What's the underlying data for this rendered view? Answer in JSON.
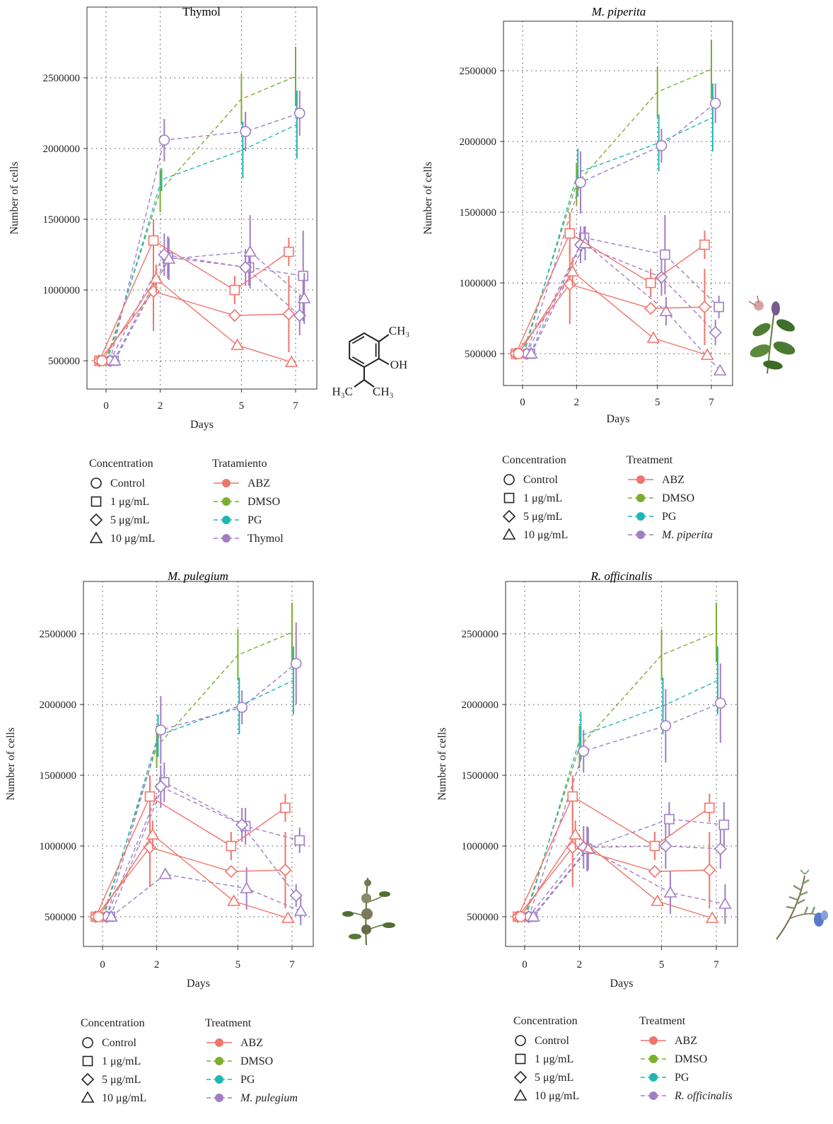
{
  "colors": {
    "ABZ": "#F0756B",
    "DMSO": "#7AAE2E",
    "PG": "#1FB7B5",
    "EO": "#A07EC4"
  },
  "icons": {
    "panel_1": "thymol-structure",
    "panel_2": "mentha-piperita-plant",
    "panel_3": "mentha-pulegium-plant",
    "panel_4": "rosmarinus-officinalis-plant"
  },
  "chem": {
    "ch3_top": "CH₃",
    "oh": "OH",
    "h3c": "H₃C",
    "ch3_bottom": "CH₃"
  },
  "chart_data": [
    {
      "type": "line",
      "title": "Thymol",
      "title_italic": false,
      "xlabel": "Days",
      "ylabel": "Number of cells",
      "x_ticks": [
        0,
        2,
        5,
        7
      ],
      "y_ticks": [
        500000,
        1000000,
        1500000,
        2000000,
        2500000
      ],
      "ylim": [
        300000,
        2750000
      ],
      "grid": true,
      "legend": {
        "conc_title": "Concentration",
        "conc": [
          "Control",
          "1 μg/mL",
          "5 μg/mL",
          "10 μg/mL"
        ],
        "treat_title": "Tratamiento",
        "treat": [
          "ABZ",
          "DMSO",
          "PG",
          "Thymol"
        ]
      },
      "series": [
        {
          "treatment": "DMSO",
          "marker": "none",
          "x": [
            0,
            2,
            5,
            7
          ],
          "y": [
            500000,
            1700000,
            2350000,
            2510000
          ],
          "err": [
            0,
            150000,
            180000,
            210000
          ]
        },
        {
          "treatment": "PG",
          "marker": "none",
          "x": [
            0,
            2,
            5,
            7
          ],
          "y": [
            500000,
            1780000,
            1990000,
            2170000
          ],
          "err": [
            0,
            80000,
            200000,
            240000
          ]
        },
        {
          "treatment": "EO",
          "marker": "circle",
          "x": [
            0,
            2,
            5,
            7
          ],
          "y": [
            500000,
            2060000,
            2120000,
            2250000
          ],
          "err": [
            0,
            150000,
            140000,
            160000
          ]
        },
        {
          "treatment": "EO",
          "marker": "square",
          "x": [
            0,
            2,
            5,
            7
          ],
          "y": [
            500000,
            1230000,
            1160000,
            1100000
          ],
          "err": [
            0,
            150000,
            130000,
            320000
          ]
        },
        {
          "treatment": "EO",
          "marker": "diamond",
          "x": [
            0,
            2,
            5,
            7
          ],
          "y": [
            500000,
            1250000,
            1160000,
            820000
          ],
          "err": [
            0,
            150000,
            130000,
            140000
          ]
        },
        {
          "treatment": "EO",
          "marker": "triangle",
          "x": [
            0,
            2,
            5,
            7
          ],
          "y": [
            500000,
            1220000,
            1270000,
            940000
          ],
          "err": [
            0,
            150000,
            260000,
            180000
          ]
        },
        {
          "treatment": "ABZ",
          "marker": "square",
          "x": [
            0,
            2,
            5,
            7
          ],
          "y": [
            500000,
            1350000,
            1000000,
            1270000
          ],
          "err": [
            0,
            150000,
            100000,
            100000
          ]
        },
        {
          "treatment": "ABZ",
          "marker": "diamond",
          "x": [
            0,
            2,
            5,
            7
          ],
          "y": [
            500000,
            990000,
            820000,
            830000
          ],
          "err": [
            0,
            280000,
            0,
            270000
          ]
        },
        {
          "treatment": "ABZ",
          "marker": "triangle",
          "x": [
            0,
            2,
            5,
            7
          ],
          "y": [
            500000,
            1080000,
            610000,
            490000
          ],
          "err": [
            0,
            100000,
            0,
            0
          ]
        },
        {
          "treatment": "ABZ",
          "marker": "circle",
          "x": [
            0
          ],
          "y": [
            500000
          ],
          "err": [
            0
          ]
        }
      ]
    },
    {
      "type": "line",
      "title": "M. piperita",
      "title_italic": true,
      "xlabel": "Days",
      "ylabel": "Number of cells",
      "x_ticks": [
        0,
        2,
        5,
        7
      ],
      "y_ticks": [
        500000,
        1000000,
        1500000,
        2000000,
        2500000
      ],
      "ylim": [
        300000,
        2750000
      ],
      "grid": true,
      "legend": {
        "conc_title": "Concentration",
        "conc": [
          "Control",
          "1 μg/mL",
          "5 μg/mL",
          "10 μg/mL"
        ],
        "treat_title": "Treatment",
        "treat": [
          "ABZ",
          "DMSO",
          "PG",
          "M. piperita"
        ]
      },
      "series": [
        {
          "treatment": "DMSO",
          "marker": "none",
          "x": [
            0,
            2,
            5,
            7
          ],
          "y": [
            500000,
            1700000,
            2350000,
            2510000
          ],
          "err": [
            0,
            150000,
            180000,
            210000
          ]
        },
        {
          "treatment": "PG",
          "marker": "none",
          "x": [
            0,
            2,
            5,
            7
          ],
          "y": [
            500000,
            1780000,
            1990000,
            2170000
          ],
          "err": [
            0,
            170000,
            200000,
            240000
          ]
        },
        {
          "treatment": "EO",
          "marker": "circle",
          "x": [
            0,
            2,
            5,
            7
          ],
          "y": [
            500000,
            1710000,
            1970000,
            2270000
          ],
          "err": [
            0,
            220000,
            120000,
            140000
          ]
        },
        {
          "treatment": "EO",
          "marker": "square",
          "x": [
            0,
            2,
            5,
            7
          ],
          "y": [
            500000,
            1320000,
            1200000,
            830000
          ],
          "err": [
            0,
            80000,
            280000,
            80000
          ]
        },
        {
          "treatment": "EO",
          "marker": "diamond",
          "x": [
            0,
            2,
            5,
            7
          ],
          "y": [
            500000,
            1270000,
            1040000,
            650000
          ],
          "err": [
            0,
            130000,
            130000,
            90000
          ]
        },
        {
          "treatment": "EO",
          "marker": "triangle",
          "x": [
            0,
            2,
            5,
            7
          ],
          "y": [
            500000,
            1280000,
            800000,
            380000
          ],
          "err": [
            0,
            120000,
            100000,
            0
          ]
        },
        {
          "treatment": "ABZ",
          "marker": "square",
          "x": [
            0,
            2,
            5,
            7
          ],
          "y": [
            500000,
            1350000,
            1000000,
            1270000
          ],
          "err": [
            0,
            150000,
            100000,
            100000
          ]
        },
        {
          "treatment": "ABZ",
          "marker": "diamond",
          "x": [
            0,
            2,
            5,
            7
          ],
          "y": [
            500000,
            990000,
            820000,
            830000
          ],
          "err": [
            0,
            280000,
            0,
            270000
          ]
        },
        {
          "treatment": "ABZ",
          "marker": "triangle",
          "x": [
            0,
            2,
            5,
            7
          ],
          "y": [
            500000,
            1080000,
            610000,
            490000
          ],
          "err": [
            0,
            100000,
            0,
            0
          ]
        },
        {
          "treatment": "ABZ",
          "marker": "circle",
          "x": [
            0
          ],
          "y": [
            500000
          ],
          "err": [
            0
          ]
        }
      ]
    },
    {
      "type": "line",
      "title": "M. pulegium",
      "title_italic": true,
      "xlabel": "Days",
      "ylabel": "Number of cells",
      "x_ticks": [
        0,
        2,
        5,
        7
      ],
      "y_ticks": [
        500000,
        1000000,
        1500000,
        2000000,
        2500000
      ],
      "ylim": [
        300000,
        2750000
      ],
      "grid": true,
      "legend": {
        "conc_title": "Concentration",
        "conc": [
          "Control",
          "1 μg/mL",
          "5 μg/mL",
          "10 μg/mL"
        ],
        "treat_title": "Treatment",
        "treat": [
          "ABZ",
          "DMSO",
          "PG",
          "M. pulegium"
        ]
      },
      "series": [
        {
          "treatment": "DMSO",
          "marker": "none",
          "x": [
            0,
            2,
            5,
            7
          ],
          "y": [
            500000,
            1700000,
            2350000,
            2510000
          ],
          "err": [
            0,
            150000,
            180000,
            210000
          ]
        },
        {
          "treatment": "PG",
          "marker": "none",
          "x": [
            0,
            2,
            5,
            7
          ],
          "y": [
            500000,
            1780000,
            1990000,
            2170000
          ],
          "err": [
            0,
            150000,
            200000,
            240000
          ]
        },
        {
          "treatment": "EO",
          "marker": "circle",
          "x": [
            0,
            2,
            5,
            7
          ],
          "y": [
            500000,
            1820000,
            1980000,
            2290000
          ],
          "err": [
            0,
            240000,
            120000,
            290000
          ]
        },
        {
          "treatment": "EO",
          "marker": "square",
          "x": [
            0,
            2,
            5,
            7
          ],
          "y": [
            500000,
            1450000,
            1140000,
            1040000
          ],
          "err": [
            0,
            140000,
            130000,
            90000
          ]
        },
        {
          "treatment": "EO",
          "marker": "diamond",
          "x": [
            0,
            2,
            5,
            7
          ],
          "y": [
            500000,
            1420000,
            1150000,
            650000
          ],
          "err": [
            0,
            150000,
            120000,
            80000
          ]
        },
        {
          "treatment": "EO",
          "marker": "triangle",
          "x": [
            0,
            2,
            5,
            7
          ],
          "y": [
            500000,
            800000,
            700000,
            540000
          ],
          "err": [
            0,
            0,
            150000,
            100000
          ]
        },
        {
          "treatment": "ABZ",
          "marker": "square",
          "x": [
            0,
            2,
            5,
            7
          ],
          "y": [
            500000,
            1350000,
            1000000,
            1270000
          ],
          "err": [
            0,
            150000,
            100000,
            100000
          ]
        },
        {
          "treatment": "ABZ",
          "marker": "diamond",
          "x": [
            0,
            2,
            5,
            7
          ],
          "y": [
            500000,
            990000,
            820000,
            830000
          ],
          "err": [
            0,
            280000,
            0,
            270000
          ]
        },
        {
          "treatment": "ABZ",
          "marker": "triangle",
          "x": [
            0,
            2,
            5,
            7
          ],
          "y": [
            500000,
            1080000,
            610000,
            490000
          ],
          "err": [
            0,
            100000,
            0,
            0
          ]
        },
        {
          "treatment": "ABZ",
          "marker": "circle",
          "x": [
            0
          ],
          "y": [
            500000
          ],
          "err": [
            0
          ]
        }
      ]
    },
    {
      "type": "line",
      "title": "R. officinalis",
      "title_italic": true,
      "xlabel": "Days",
      "ylabel": "Number of cells",
      "x_ticks": [
        0,
        2,
        5,
        7
      ],
      "y_ticks": [
        500000,
        1000000,
        1500000,
        2000000,
        2500000
      ],
      "ylim": [
        300000,
        2750000
      ],
      "grid": true,
      "legend": {
        "conc_title": "Concentration",
        "conc": [
          "Control",
          "1 μg/mL",
          "5 μg/mL",
          "10 μg/mL"
        ],
        "treat_title": "Treatment",
        "treat": [
          "ABZ",
          "DMSO",
          "PG",
          "R. officinalis"
        ]
      },
      "series": [
        {
          "treatment": "DMSO",
          "marker": "none",
          "x": [
            0,
            2,
            5,
            7
          ],
          "y": [
            500000,
            1700000,
            2350000,
            2510000
          ],
          "err": [
            0,
            150000,
            180000,
            210000
          ]
        },
        {
          "treatment": "PG",
          "marker": "none",
          "x": [
            0,
            2,
            5,
            7
          ],
          "y": [
            500000,
            1780000,
            1990000,
            2170000
          ],
          "err": [
            0,
            170000,
            200000,
            240000
          ]
        },
        {
          "treatment": "EO",
          "marker": "circle",
          "x": [
            0,
            2,
            5,
            7
          ],
          "y": [
            500000,
            1670000,
            1850000,
            2010000
          ],
          "err": [
            0,
            150000,
            260000,
            280000
          ]
        },
        {
          "treatment": "EO",
          "marker": "square",
          "x": [
            0,
            2,
            5,
            7
          ],
          "y": [
            500000,
            980000,
            1190000,
            1150000
          ],
          "err": [
            0,
            160000,
            120000,
            160000
          ]
        },
        {
          "treatment": "EO",
          "marker": "diamond",
          "x": [
            0,
            2,
            5,
            7
          ],
          "y": [
            500000,
            990000,
            1000000,
            980000
          ],
          "err": [
            0,
            150000,
            160000,
            140000
          ]
        },
        {
          "treatment": "EO",
          "marker": "triangle",
          "x": [
            0,
            2,
            5,
            7
          ],
          "y": [
            500000,
            980000,
            670000,
            590000
          ],
          "err": [
            0,
            150000,
            150000,
            140000
          ]
        },
        {
          "treatment": "ABZ",
          "marker": "square",
          "x": [
            0,
            2,
            5,
            7
          ],
          "y": [
            500000,
            1350000,
            1000000,
            1270000
          ],
          "err": [
            0,
            150000,
            100000,
            100000
          ]
        },
        {
          "treatment": "ABZ",
          "marker": "diamond",
          "x": [
            0,
            2,
            5,
            7
          ],
          "y": [
            500000,
            990000,
            820000,
            830000
          ],
          "err": [
            0,
            280000,
            0,
            270000
          ]
        },
        {
          "treatment": "ABZ",
          "marker": "triangle",
          "x": [
            0,
            2,
            5,
            7
          ],
          "y": [
            500000,
            1080000,
            610000,
            490000
          ],
          "err": [
            0,
            100000,
            0,
            0
          ]
        },
        {
          "treatment": "ABZ",
          "marker": "circle",
          "x": [
            0
          ],
          "y": [
            500000
          ],
          "err": [
            0
          ]
        }
      ]
    }
  ]
}
